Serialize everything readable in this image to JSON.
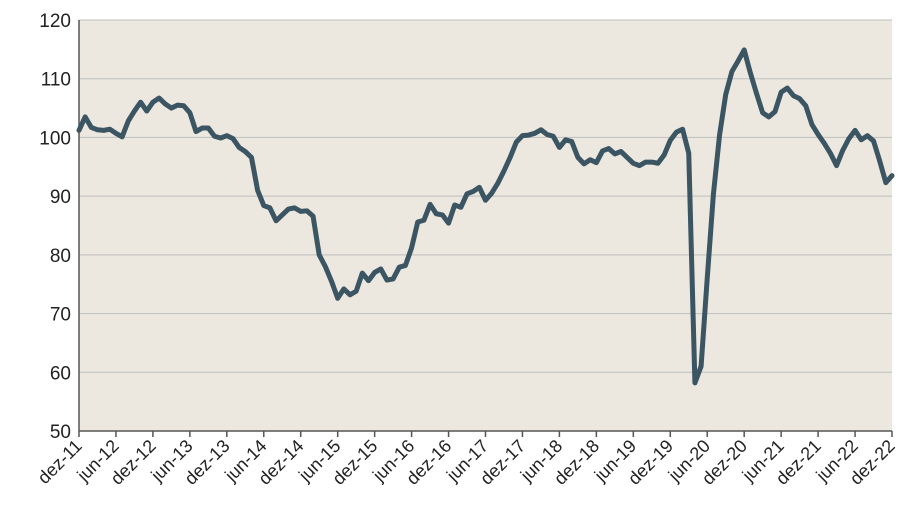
{
  "chart_data": {
    "type": "line",
    "title": "",
    "xlabel": "",
    "ylabel": "",
    "ylim": [
      50,
      120
    ],
    "yticks": [
      50,
      60,
      70,
      80,
      90,
      100,
      110,
      120
    ],
    "grid": true,
    "legend": "none",
    "colors": {
      "plot_background": "#ece8df",
      "line": "#3b5563",
      "grid": "#bfbfbf"
    },
    "x_tick_labels": [
      "dez-11",
      "jun-12",
      "dez-12",
      "jun-13",
      "dez-13",
      "jun-14",
      "dez-14",
      "jun-15",
      "dez-15",
      "jun-16",
      "dez-16",
      "jun-17",
      "dez-17",
      "jun-18",
      "dez-18",
      "jun-19",
      "dez-19",
      "jun-20",
      "dez-20",
      "jun-21",
      "dez-21",
      "jun-22",
      "dez-22"
    ],
    "x_start": "dez-11",
    "x_end": "dez-22",
    "series": [
      {
        "values": [
          101.2,
          103.5,
          101.7,
          101.3,
          101.2,
          101.4,
          100.7,
          100.1,
          102.8,
          104.5,
          106.0,
          104.5,
          106.0,
          106.7,
          105.7,
          105.0,
          105.5,
          105.4,
          104.2,
          101.0,
          101.6,
          101.6,
          100.2,
          99.9,
          100.3,
          99.8,
          98.3,
          97.6,
          96.6,
          91.0,
          88.4,
          88.0,
          85.8,
          86.8,
          87.8,
          88.0,
          87.4,
          87.5,
          86.6,
          80.0,
          78.0,
          75.5,
          72.6,
          74.2,
          73.2,
          73.8,
          76.9,
          75.6,
          77.0,
          77.6,
          75.7,
          75.9,
          77.9,
          78.2,
          81.2,
          85.6,
          85.9,
          88.6,
          87.0,
          86.8,
          85.4,
          88.5,
          88.1,
          90.4,
          90.8,
          91.5,
          89.3,
          90.5,
          92.2,
          94.3,
          96.6,
          99.2,
          100.3,
          100.4,
          100.7,
          101.3,
          100.5,
          100.2,
          98.3,
          99.6,
          99.3,
          96.6,
          95.5,
          96.2,
          95.7,
          97.7,
          98.1,
          97.2,
          97.6,
          96.6,
          95.6,
          95.2,
          95.8,
          95.8,
          95.6,
          97.0,
          99.5,
          100.9,
          101.4,
          97.3,
          58.2,
          61.0,
          76.0,
          90.3,
          100.4,
          107.3,
          111.2,
          113.0,
          114.9,
          111.0,
          107.5,
          104.2,
          103.5,
          104.4,
          107.7,
          108.4,
          107.1,
          106.6,
          105.4,
          102.2,
          100.5,
          99.0,
          97.3,
          95.2,
          97.8,
          99.8,
          101.2,
          99.6,
          100.3,
          99.4,
          96.0,
          92.3,
          93.5
        ]
      }
    ]
  }
}
